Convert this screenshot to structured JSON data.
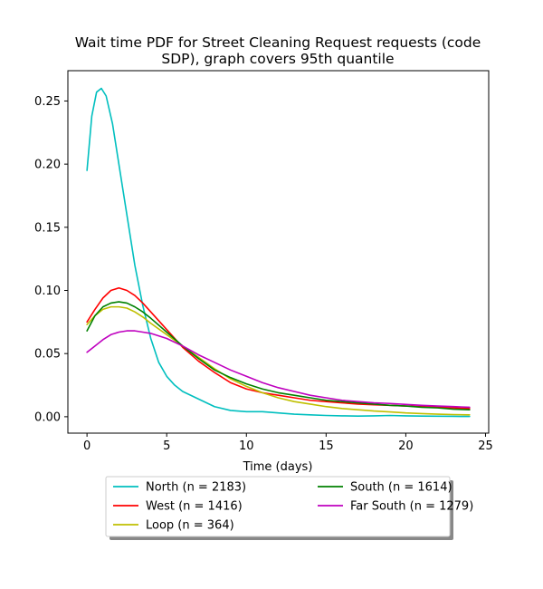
{
  "chart_data": {
    "type": "line",
    "title_line1": "Wait time PDF for Street Cleaning Request  requests (code",
    "title_line2": "SDP), graph covers 95th quantile",
    "xlabel": "Time (days)",
    "ylabel": "",
    "xlim": [
      -1.2,
      25.2
    ],
    "ylim": [
      -0.013,
      0.274
    ],
    "xticks": [
      0,
      5,
      10,
      15,
      20,
      25
    ],
    "yticks": [
      0.0,
      0.05,
      0.1,
      0.15,
      0.2,
      0.25
    ],
    "xtick_labels": [
      "0",
      "5",
      "10",
      "15",
      "20",
      "25"
    ],
    "ytick_labels": [
      "0.00",
      "0.05",
      "0.10",
      "0.15",
      "0.20",
      "0.25"
    ],
    "grid": false,
    "legend_placement": "bottom-center, below axes",
    "series": [
      {
        "name": "North (n = 2183)",
        "color": "#00bfbf",
        "x": [
          0,
          0.3,
          0.6,
          0.9,
          1.2,
          1.6,
          2.0,
          2.5,
          3.0,
          3.5,
          4.0,
          4.5,
          5.0,
          5.5,
          6.0,
          7.0,
          8.0,
          9.0,
          10.0,
          11.0,
          12.0,
          13.0,
          14.0,
          15.0,
          16.0,
          17.0,
          18.0,
          19.0,
          20.0,
          21.0,
          22.0,
          23.0,
          24.0
        ],
        "y": [
          0.195,
          0.238,
          0.257,
          0.26,
          0.254,
          0.232,
          0.2,
          0.16,
          0.12,
          0.088,
          0.062,
          0.043,
          0.032,
          0.025,
          0.02,
          0.014,
          0.008,
          0.005,
          0.004,
          0.004,
          0.003,
          0.002,
          0.0015,
          0.001,
          0.0007,
          0.0005,
          0.0007,
          0.001,
          0.0007,
          0.0005,
          0.0004,
          0.0003,
          0.0002
        ]
      },
      {
        "name": "West (n = 1416)",
        "color": "#ff0000",
        "x": [
          0,
          0.5,
          1.0,
          1.5,
          2.0,
          2.5,
          3.0,
          3.5,
          4.0,
          5.0,
          6.0,
          7.0,
          8.0,
          9.0,
          10.0,
          11.0,
          12.0,
          13.0,
          14.0,
          15.0,
          16.0,
          17.0,
          18.0,
          19.0,
          20.0,
          21.0,
          22.0,
          23.0,
          24.0
        ],
        "y": [
          0.075,
          0.085,
          0.094,
          0.1,
          0.102,
          0.1,
          0.096,
          0.09,
          0.083,
          0.069,
          0.055,
          0.044,
          0.035,
          0.027,
          0.022,
          0.019,
          0.017,
          0.015,
          0.013,
          0.012,
          0.011,
          0.01,
          0.0095,
          0.009,
          0.0085,
          0.008,
          0.0075,
          0.007,
          0.0065
        ]
      },
      {
        "name": "Loop (n = 364)",
        "color": "#bfbf00",
        "x": [
          0,
          0.5,
          1.0,
          1.5,
          2.0,
          2.5,
          3.0,
          3.5,
          4.0,
          5.0,
          6.0,
          7.0,
          8.0,
          9.0,
          10.0,
          11.0,
          12.0,
          13.0,
          14.0,
          15.0,
          16.0,
          17.0,
          18.0,
          19.0,
          20.0,
          21.0,
          22.0,
          23.0,
          24.0
        ],
        "y": [
          0.073,
          0.08,
          0.085,
          0.087,
          0.087,
          0.086,
          0.083,
          0.079,
          0.074,
          0.065,
          0.056,
          0.047,
          0.038,
          0.03,
          0.024,
          0.019,
          0.015,
          0.012,
          0.01,
          0.008,
          0.0065,
          0.0055,
          0.0045,
          0.0038,
          0.003,
          0.0025,
          0.002,
          0.0017,
          0.0015
        ]
      },
      {
        "name": "South (n = 1614)",
        "color": "#008000",
        "x": [
          0,
          0.5,
          1.0,
          1.5,
          2.0,
          2.5,
          3.0,
          3.5,
          4.0,
          5.0,
          6.0,
          7.0,
          8.0,
          9.0,
          10.0,
          11.0,
          12.0,
          13.0,
          14.0,
          15.0,
          16.0,
          17.0,
          18.0,
          19.0,
          20.0,
          21.0,
          22.0,
          23.0,
          24.0
        ],
        "y": [
          0.068,
          0.08,
          0.087,
          0.09,
          0.091,
          0.09,
          0.087,
          0.083,
          0.078,
          0.067,
          0.056,
          0.046,
          0.037,
          0.031,
          0.026,
          0.022,
          0.019,
          0.017,
          0.015,
          0.013,
          0.012,
          0.011,
          0.01,
          0.009,
          0.0085,
          0.0075,
          0.007,
          0.006,
          0.0055
        ]
      },
      {
        "name": "Far South (n = 1279)",
        "color": "#bf00bf",
        "x": [
          0,
          0.5,
          1.0,
          1.5,
          2.0,
          2.5,
          3.0,
          3.5,
          4.0,
          5.0,
          6.0,
          7.0,
          8.0,
          9.0,
          10.0,
          11.0,
          12.0,
          13.0,
          14.0,
          15.0,
          16.0,
          17.0,
          18.0,
          19.0,
          20.0,
          21.0,
          22.0,
          23.0,
          24.0
        ],
        "y": [
          0.051,
          0.056,
          0.061,
          0.065,
          0.067,
          0.068,
          0.068,
          0.067,
          0.066,
          0.062,
          0.056,
          0.049,
          0.043,
          0.037,
          0.032,
          0.027,
          0.023,
          0.02,
          0.017,
          0.015,
          0.013,
          0.012,
          0.011,
          0.0105,
          0.0097,
          0.009,
          0.0085,
          0.008,
          0.0075
        ]
      }
    ]
  }
}
